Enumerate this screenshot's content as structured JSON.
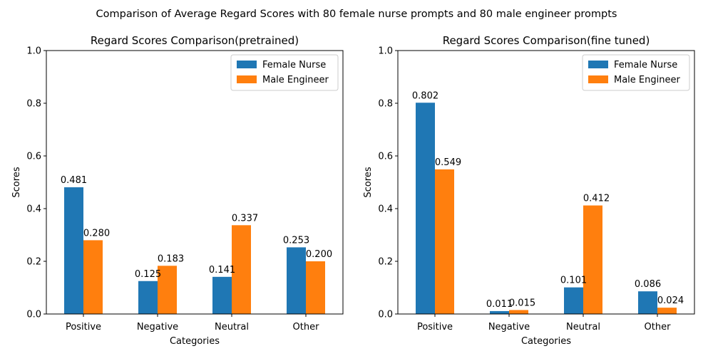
{
  "suptitle": "Comparison of Average Regard Scores with 80 female nurse prompts and 80 male engineer prompts",
  "colors": {
    "Female Nurse": "#1f77b4",
    "Male Engineer": "#ff7f0e"
  },
  "chart_data": [
    {
      "type": "bar",
      "title": "Regard Scores Comparison(pretrained)",
      "xlabel": "Categories",
      "ylabel": "Scores",
      "ylim": [
        0,
        1
      ],
      "yticks": [
        "0.0",
        "0.2",
        "0.4",
        "0.6",
        "0.8",
        "1.0"
      ],
      "categories": [
        "Positive",
        "Negative",
        "Neutral",
        "Other"
      ],
      "series": [
        {
          "name": "Female Nurse",
          "values": [
            0.481,
            0.125,
            0.141,
            0.253
          ],
          "labels": [
            "0.481",
            "0.125",
            "0.141",
            "0.253"
          ]
        },
        {
          "name": "Male Engineer",
          "values": [
            0.28,
            0.183,
            0.337,
            0.2
          ],
          "labels": [
            "0.280",
            "0.183",
            "0.337",
            "0.200"
          ]
        }
      ],
      "legend": "top-right",
      "grid": false
    },
    {
      "type": "bar",
      "title": "Regard Scores Comparison(fine tuned)",
      "xlabel": "Categories",
      "ylabel": "Scores",
      "ylim": [
        0,
        1
      ],
      "yticks": [
        "0.0",
        "0.2",
        "0.4",
        "0.6",
        "0.8",
        "1.0"
      ],
      "categories": [
        "Positive",
        "Negative",
        "Neutral",
        "Other"
      ],
      "series": [
        {
          "name": "Female Nurse",
          "values": [
            0.802,
            0.011,
            0.101,
            0.086
          ],
          "labels": [
            "0.802",
            "0.011",
            "0.101",
            "0.086"
          ]
        },
        {
          "name": "Male Engineer",
          "values": [
            0.549,
            0.015,
            0.412,
            0.024
          ],
          "labels": [
            "0.549",
            "0.015",
            "0.412",
            "0.024"
          ]
        }
      ],
      "legend": "top-right",
      "grid": false
    }
  ]
}
